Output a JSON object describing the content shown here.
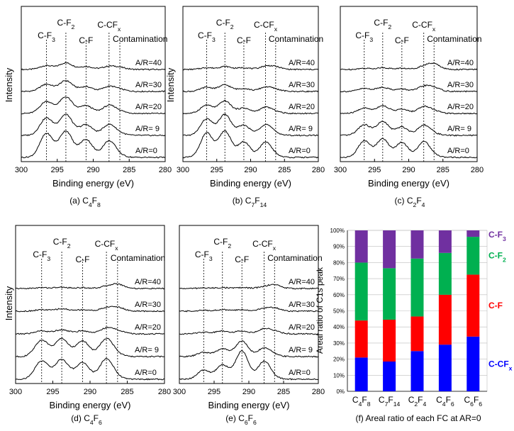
{
  "chart_data": [
    {
      "type": "line",
      "caption": {
        "prefix": "(a) ",
        "formula": [
          [
            "C",
            ""
          ],
          [
            "4",
            "sub"
          ],
          [
            "F",
            ""
          ],
          [
            "8",
            "sub"
          ]
        ]
      },
      "xlabel": "Binding energy (eV)",
      "ylabel": "Intensity",
      "xlim": [
        300,
        280
      ],
      "xticks": [
        "300",
        "295",
        "290",
        "285",
        "280"
      ],
      "peaks": [
        {
          "name": [
            [
              "C-F",
              ""
            ],
            [
              "3",
              "sub"
            ]
          ],
          "x": 296.5
        },
        {
          "name": [
            [
              "C-F",
              ""
            ],
            [
              "2",
              "sub"
            ]
          ],
          "x": 293.8
        },
        {
          "name": [
            [
              "C-F",
              ""
            ]
          ],
          "x": 291.0
        },
        {
          "name": [
            [
              "C-CF",
              ""
            ],
            [
              "x",
              "sub"
            ]
          ],
          "x": 287.8
        },
        {
          "name": [
            [
              "Contamination",
              ""
            ]
          ],
          "x": 286.3
        }
      ],
      "series": [
        {
          "name": "A/R=40",
          "amplitudes": [
            0.13,
            0.22,
            0.1,
            0.1,
            0.06
          ]
        },
        {
          "name": "A/R=30",
          "amplitudes": [
            0.24,
            0.36,
            0.16,
            0.16,
            0.06
          ]
        },
        {
          "name": "A/R=20",
          "amplitudes": [
            0.4,
            0.55,
            0.26,
            0.26,
            0.06
          ]
        },
        {
          "name": "A/R= 9",
          "amplitudes": [
            0.58,
            0.7,
            0.36,
            0.36,
            0.05
          ]
        },
        {
          "name": "A/R=0",
          "amplitudes": [
            0.8,
            0.88,
            0.6,
            0.55,
            0.04
          ]
        }
      ]
    },
    {
      "type": "line",
      "caption": {
        "prefix": "(b) ",
        "formula": [
          [
            "C",
            ""
          ],
          [
            "7",
            "sub"
          ],
          [
            "F",
            ""
          ],
          [
            "14",
            "sub"
          ]
        ]
      },
      "xlabel": "Binding energy (eV)",
      "ylabel": "Intensity",
      "xlim": [
        300,
        280
      ],
      "xticks": [
        "300",
        "295",
        "290",
        "285",
        "280"
      ],
      "peaks": [
        {
          "name": [
            [
              "C-F",
              ""
            ],
            [
              "3",
              "sub"
            ]
          ],
          "x": 296.5
        },
        {
          "name": [
            [
              "C-F",
              ""
            ],
            [
              "2",
              "sub"
            ]
          ],
          "x": 293.8
        },
        {
          "name": [
            [
              "C-F",
              ""
            ]
          ],
          "x": 291.0
        },
        {
          "name": [
            [
              "C-CF",
              ""
            ],
            [
              "x",
              "sub"
            ]
          ],
          "x": 287.8
        },
        {
          "name": [
            [
              "Contamination",
              ""
            ]
          ],
          "x": 286.3
        }
      ],
      "series": [
        {
          "name": "A/R=40",
          "amplitudes": [
            0.06,
            0.1,
            0.06,
            0.1,
            0.08
          ]
        },
        {
          "name": "A/R=30",
          "amplitudes": [
            0.14,
            0.22,
            0.1,
            0.14,
            0.06
          ]
        },
        {
          "name": "A/R=20",
          "amplitudes": [
            0.28,
            0.42,
            0.18,
            0.2,
            0.05
          ]
        },
        {
          "name": "A/R= 9",
          "amplitudes": [
            0.55,
            0.7,
            0.34,
            0.36,
            0.05
          ]
        },
        {
          "name": "A/R=0",
          "amplitudes": [
            0.82,
            0.88,
            0.52,
            0.5,
            0.04
          ]
        }
      ]
    },
    {
      "type": "line",
      "caption": {
        "prefix": "(c) ",
        "formula": [
          [
            "C",
            ""
          ],
          [
            "2",
            "sub"
          ],
          [
            "F",
            ""
          ],
          [
            "4",
            "sub"
          ]
        ]
      },
      "xlabel": "Binding energy (eV)",
      "ylabel": "",
      "xlim": [
        300,
        280
      ],
      "xticks": [
        "300",
        "295",
        "290",
        "285",
        "280"
      ],
      "peaks": [
        {
          "name": [
            [
              "C-F",
              ""
            ],
            [
              "3",
              "sub"
            ]
          ],
          "x": 296.5
        },
        {
          "name": [
            [
              "C-F",
              ""
            ],
            [
              "2",
              "sub"
            ]
          ],
          "x": 293.8
        },
        {
          "name": [
            [
              "C-F",
              ""
            ]
          ],
          "x": 291.0
        },
        {
          "name": [
            [
              "C-CF",
              ""
            ],
            [
              "x",
              "sub"
            ]
          ],
          "x": 287.8
        },
        {
          "name": [
            [
              "Contamination",
              ""
            ]
          ],
          "x": 286.3
        }
      ],
      "series": [
        {
          "name": "A/R=40",
          "amplitudes": [
            0.04,
            0.06,
            0.04,
            0.1,
            0.18
          ]
        },
        {
          "name": "A/R=30",
          "amplitudes": [
            0.1,
            0.14,
            0.08,
            0.16,
            0.12
          ]
        },
        {
          "name": "A/R=20",
          "amplitudes": [
            0.18,
            0.26,
            0.14,
            0.22,
            0.08
          ]
        },
        {
          "name": "A/R= 9",
          "amplitudes": [
            0.36,
            0.46,
            0.28,
            0.34,
            0.05
          ]
        },
        {
          "name": "A/R=0",
          "amplitudes": [
            0.55,
            0.62,
            0.5,
            0.52,
            0.04
          ]
        }
      ]
    },
    {
      "type": "line",
      "caption": {
        "prefix": "(d) ",
        "formula": [
          [
            "C",
            ""
          ],
          [
            "4",
            "sub"
          ],
          [
            "F",
            ""
          ],
          [
            "6",
            "sub"
          ]
        ]
      },
      "xlabel": "Binding energy (eV)",
      "ylabel": "Intensity",
      "xlim": [
        300,
        280
      ],
      "xticks": [
        "300",
        "295",
        "290",
        "285",
        "280"
      ],
      "peaks": [
        {
          "name": [
            [
              "C-F",
              ""
            ],
            [
              "3",
              "sub"
            ]
          ],
          "x": 296.5
        },
        {
          "name": [
            [
              "C-F",
              ""
            ],
            [
              "2",
              "sub"
            ]
          ],
          "x": 293.8
        },
        {
          "name": [
            [
              "C-F",
              ""
            ]
          ],
          "x": 291.0
        },
        {
          "name": [
            [
              "C-CF",
              ""
            ],
            [
              "x",
              "sub"
            ]
          ],
          "x": 287.8
        },
        {
          "name": [
            [
              "Contamination",
              ""
            ]
          ],
          "x": 286.3
        }
      ],
      "series": [
        {
          "name": "A/R=40",
          "amplitudes": [
            0.03,
            0.04,
            0.03,
            0.06,
            0.14
          ]
        },
        {
          "name": "A/R=30",
          "amplitudes": [
            0.05,
            0.08,
            0.05,
            0.1,
            0.12
          ]
        },
        {
          "name": "A/R=20",
          "amplitudes": [
            0.1,
            0.14,
            0.1,
            0.18,
            0.1
          ]
        },
        {
          "name": "A/R= 9",
          "amplitudes": [
            0.55,
            0.6,
            0.52,
            0.6,
            0.05
          ]
        },
        {
          "name": "A/R=0",
          "amplitudes": [
            0.62,
            0.66,
            0.56,
            0.68,
            0.04
          ]
        }
      ]
    },
    {
      "type": "line",
      "caption": {
        "prefix": "(e) ",
        "formula": [
          [
            "C",
            ""
          ],
          [
            "6",
            "sub"
          ],
          [
            "F",
            ""
          ],
          [
            "6",
            "sub"
          ]
        ]
      },
      "xlabel": "Binding energy (eV)",
      "ylabel": "",
      "xlim": [
        300,
        280
      ],
      "xticks": [
        "300",
        "295",
        "290",
        "285",
        "280"
      ],
      "peaks": [
        {
          "name": [
            [
              "C-F",
              ""
            ],
            [
              "3",
              "sub"
            ]
          ],
          "x": 296.5
        },
        {
          "name": [
            [
              "C-F",
              ""
            ],
            [
              "2",
              "sub"
            ]
          ],
          "x": 293.8
        },
        {
          "name": [
            [
              "C-F",
              ""
            ]
          ],
          "x": 291.0
        },
        {
          "name": [
            [
              "C-CF",
              ""
            ],
            [
              "x",
              "sub"
            ]
          ],
          "x": 287.8
        },
        {
          "name": [
            [
              "Contamination",
              ""
            ]
          ],
          "x": 286.3
        }
      ],
      "series": [
        {
          "name": "A/R=40",
          "amplitudes": [
            0.02,
            0.03,
            0.03,
            0.05,
            0.12
          ]
        },
        {
          "name": "A/R=30",
          "amplitudes": [
            0.03,
            0.05,
            0.05,
            0.08,
            0.1
          ]
        },
        {
          "name": "A/R=20",
          "amplitudes": [
            0.06,
            0.1,
            0.1,
            0.16,
            0.08
          ]
        },
        {
          "name": "A/R= 9",
          "amplitudes": [
            0.14,
            0.26,
            0.52,
            0.28,
            0.05
          ]
        },
        {
          "name": "A/R=0",
          "amplitudes": [
            0.3,
            0.48,
            0.95,
            0.6,
            0.04
          ]
        }
      ]
    },
    {
      "type": "bar",
      "stacked": true,
      "caption": "(f) Areal ratio of each FC at AR=0",
      "ylabel": "Areal  ratio of C1s peak",
      "ylim": [
        0,
        100
      ],
      "yticks": [
        "0%",
        "10%",
        "20%",
        "30%",
        "40%",
        "50%",
        "60%",
        "70%",
        "80%",
        "90%",
        "100%"
      ],
      "categories": [
        [
          [
            "C",
            ""
          ],
          [
            "4",
            "sub"
          ],
          [
            "F",
            ""
          ],
          [
            "8",
            "sub"
          ]
        ],
        [
          [
            "C",
            ""
          ],
          [
            "7",
            "sub"
          ],
          [
            "F",
            ""
          ],
          [
            "14",
            "sub"
          ]
        ],
        [
          [
            "C",
            ""
          ],
          [
            "2",
            "sub"
          ],
          [
            "F",
            ""
          ],
          [
            "4",
            "sub"
          ]
        ],
        [
          [
            "C",
            ""
          ],
          [
            "4",
            "sub"
          ],
          [
            "F",
            ""
          ],
          [
            "6",
            "sub"
          ]
        ],
        [
          [
            "C",
            ""
          ],
          [
            "6",
            "sub"
          ],
          [
            "F",
            ""
          ],
          [
            "6",
            "sub"
          ]
        ]
      ],
      "series": [
        {
          "name": [
            [
              "C-CF",
              ""
            ],
            [
              "x",
              "sub"
            ]
          ],
          "color": "#0000ff",
          "values": [
            21,
            18.5,
            25,
            29,
            34
          ]
        },
        {
          "name": [
            [
              "C-F",
              ""
            ]
          ],
          "color": "#ff0000",
          "values": [
            23,
            26,
            21.5,
            31,
            38.5
          ]
        },
        {
          "name": [
            [
              "C-F",
              ""
            ],
            [
              "2",
              "sub"
            ]
          ],
          "color": "#00b050",
          "values": [
            36,
            32,
            36,
            26,
            23.5
          ]
        },
        {
          "name": [
            [
              "C-F",
              ""
            ],
            [
              "3",
              "sub"
            ]
          ],
          "color": "#7030a0",
          "values": [
            20,
            23.5,
            17.5,
            14,
            4
          ]
        }
      ]
    }
  ]
}
